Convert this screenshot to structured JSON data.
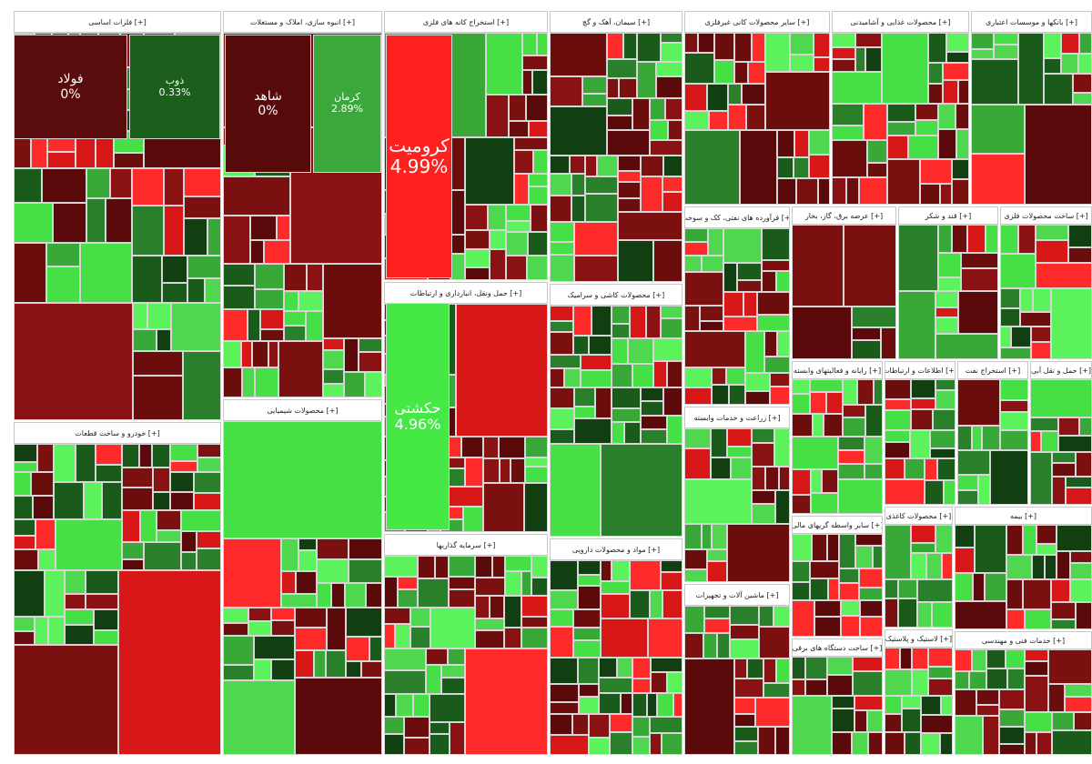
{
  "sectors": [
    {
      "title": "[+] فلزات اساسی",
      "tiles": [
        {
          "symbol": "فولاد",
          "change": "0%"
        },
        {
          "symbol": "ذوب",
          "change": "0.33%"
        }
      ]
    },
    {
      "title": "[+] انبوه سازی، املاک و مستغلات",
      "tiles": [
        {
          "symbol": "شاهد",
          "change": "0%"
        },
        {
          "symbol": "کرمان",
          "change": "2.89%"
        }
      ]
    },
    {
      "title": "[+] استخراج کانه های فلزی",
      "tiles": [
        {
          "symbol": "کرومیت",
          "change": "4.99%"
        }
      ]
    },
    {
      "title": "[+] حمل ونقل، انبارداری و ارتباطات",
      "tiles": [
        {
          "symbol": "حکشتی",
          "change": "4.96%"
        }
      ]
    },
    {
      "title": "[+] سیمان، آهک و گچ",
      "tiles": []
    },
    {
      "title": "[+] سایر محصولات کانی غیرفلزی",
      "tiles": []
    },
    {
      "title": "[+] محصولات غذایی و آشامیدنی",
      "tiles": []
    },
    {
      "title": "[+] بانکها و موسسات اعتباری",
      "tiles": []
    },
    {
      "title": "[+] خودرو و ساخت قطعات",
      "tiles": []
    },
    {
      "title": "[+] محصولات شیمیایی",
      "tiles": []
    },
    {
      "title": "[+] سرمایه گذاریها",
      "tiles": []
    },
    {
      "title": "[+] محصولات کاشی و سرامیک",
      "tiles": []
    },
    {
      "title": "[+] مواد و محصولات دارویی",
      "tiles": []
    },
    {
      "title": "[+] فرآورده های نفتی، کک و سوخت",
      "tiles": []
    },
    {
      "title": "[+] عرضه برق، گاز، بخار",
      "tiles": []
    },
    {
      "title": "[+] قند و شکر",
      "tiles": []
    },
    {
      "title": "[+] ساخت محصولات فلزی",
      "tiles": []
    },
    {
      "title": "[+] زراعت و خدمات وابسته",
      "tiles": []
    },
    {
      "title": "[+] ماشین آلات و تجهیزات",
      "tiles": []
    },
    {
      "title": "[+] رایانه و فعالیتهای وابسته",
      "tiles": []
    },
    {
      "title": "[+] اطلاعات و ارتباطات",
      "tiles": []
    },
    {
      "title": "[+] استخراج نفت",
      "tiles": []
    },
    {
      "title": "[+] حمل و نقل آبی",
      "tiles": []
    },
    {
      "title": "[+] سایر واسطه گریهای مالی",
      "tiles": []
    },
    {
      "title": "[+] ساخت دستگاه های برقی",
      "tiles": []
    },
    {
      "title": "[+] محصولات کاغذی",
      "tiles": []
    },
    {
      "title": "[+] لاستیک و پلاستیک",
      "tiles": []
    },
    {
      "title": "[+] بیمه",
      "tiles": []
    },
    {
      "title": "[+] خدمات فنی و مهندسی",
      "tiles": []
    }
  ]
}
